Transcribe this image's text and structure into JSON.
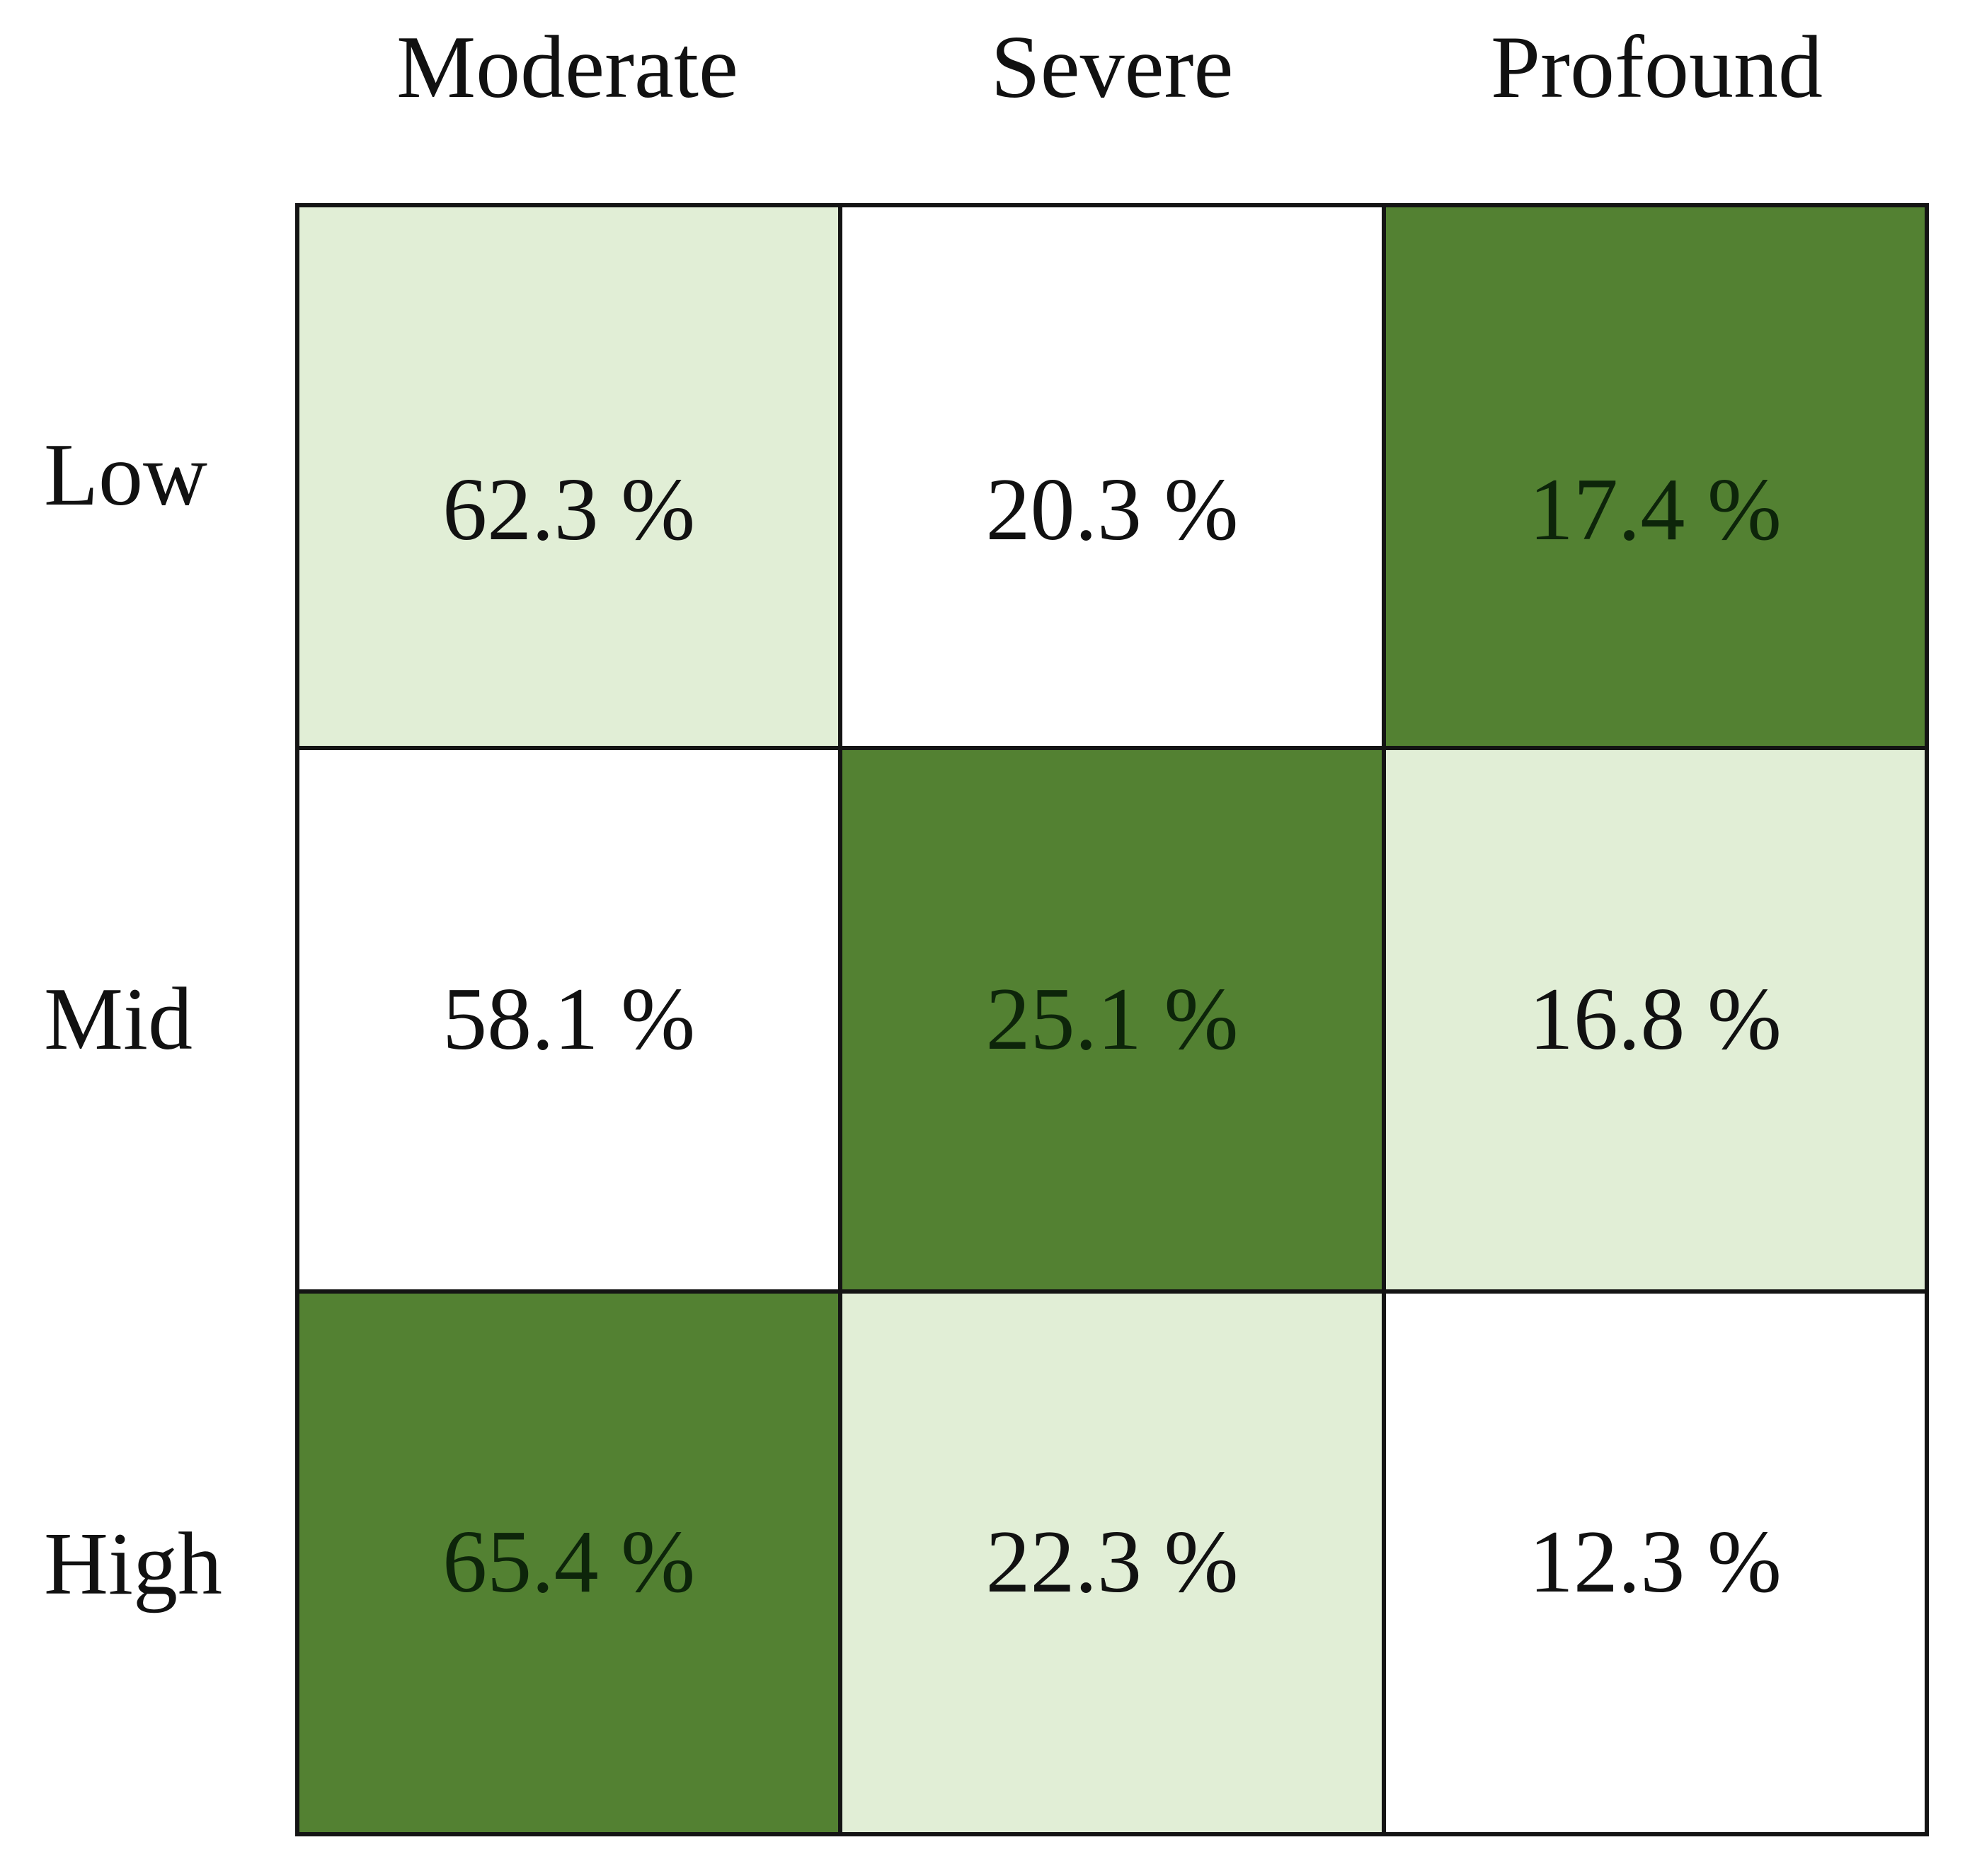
{
  "page": {
    "background": "#ffffff"
  },
  "palette": {
    "dark_green": "#538132",
    "light_green": "#e1eed6",
    "white": "#ffffff",
    "grid_line": "#141414",
    "text": "#111111",
    "dark_cell_text": "#0d250a"
  },
  "columns": [
    "Moderate",
    "Severe",
    "Profound"
  ],
  "rows": [
    "Low",
    "Mid",
    "High"
  ],
  "cells": [
    [
      {
        "value": "62.3 %",
        "shade": "light"
      },
      {
        "value": "20.3 %",
        "shade": "white"
      },
      {
        "value": "17.4 %",
        "shade": "dark"
      }
    ],
    [
      {
        "value": "58.1 %",
        "shade": "white"
      },
      {
        "value": "25.1 %",
        "shade": "dark"
      },
      {
        "value": "16.8 %",
        "shade": "light"
      }
    ],
    [
      {
        "value": "65.4 %",
        "shade": "dark"
      },
      {
        "value": "22.3 %",
        "shade": "light"
      },
      {
        "value": "12.3 %",
        "shade": "white"
      }
    ]
  ],
  "chart_data": {
    "type": "heatmap",
    "x_categories": [
      "Moderate",
      "Severe",
      "Profound"
    ],
    "y_categories": [
      "Low",
      "Mid",
      "High"
    ],
    "values_percent": [
      [
        62.3,
        20.3,
        17.4
      ],
      [
        58.1,
        25.1,
        16.8
      ],
      [
        65.4,
        22.3,
        12.3
      ]
    ],
    "cell_shading": [
      [
        "light",
        "white",
        "dark"
      ],
      [
        "white",
        "dark",
        "light"
      ],
      [
        "dark",
        "light",
        "white"
      ]
    ],
    "value_suffix": " %",
    "title": "",
    "legend": "none",
    "grid": "black cell borders"
  }
}
